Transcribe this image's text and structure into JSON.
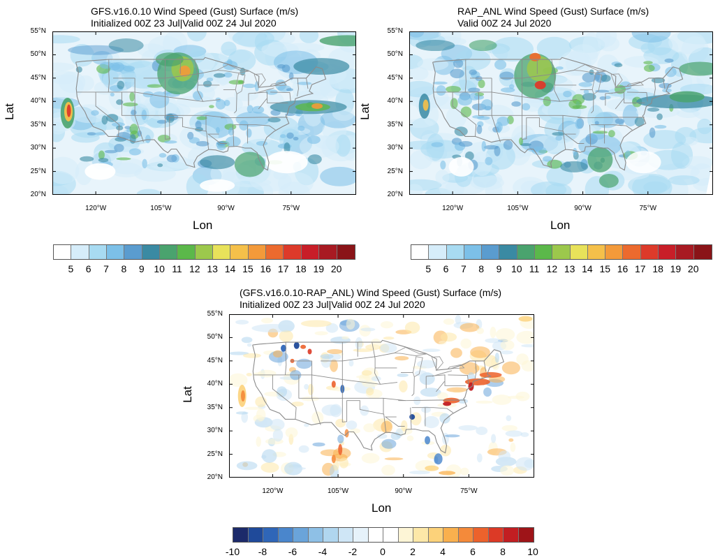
{
  "lat_ticks": [
    "55°N",
    "50°N",
    "45°N",
    "40°N",
    "35°N",
    "30°N",
    "25°N",
    "20°N"
  ],
  "lon_ticks": [
    "120°W",
    "105°W",
    "90°W",
    "75°W"
  ],
  "xlabel": "Lon",
  "ylabel": "Lat",
  "panels": [
    {
      "id": "gfs",
      "title_line1": "GFS.v16.0.10 Wind Speed (Gust) Surface (m/s)",
      "title_line2": "Initialized 00Z 23 Jul|Valid 00Z 24 Jul 2020"
    },
    {
      "id": "rap",
      "title_line1": "RAP_ANL Wind Speed (Gust) Surface (m/s)",
      "title_line2": "Valid 00Z 24 Jul 2020"
    },
    {
      "id": "diff",
      "title_line1": "(GFS.v16.0.10-RAP_ANL) Wind Speed (Gust) Surface (m/s)",
      "title_line2": "Initialized 00Z 23 Jul|Valid 00Z 24 Jul 2020"
    }
  ],
  "speed_colorbar": {
    "labels": [
      "5",
      "6",
      "7",
      "8",
      "9",
      "10",
      "11",
      "12",
      "13",
      "14",
      "15",
      "16",
      "17",
      "18",
      "19",
      "20"
    ],
    "colors": [
      "#ffffff",
      "#d6edfa",
      "#a8dbf2",
      "#7cc0e8",
      "#5a9ccf",
      "#3a8aa3",
      "#4aa36e",
      "#5bb84a",
      "#9cc84c",
      "#e8e25a",
      "#f5c04a",
      "#f39a3a",
      "#ec6a2e",
      "#dd3a2a",
      "#c81e28",
      "#a81a22",
      "#8a1418"
    ]
  },
  "diff_colorbar": {
    "labels": [
      "-10",
      "-8",
      "-6",
      "-4",
      "-2",
      "0",
      "2",
      "4",
      "6",
      "8",
      "10"
    ],
    "colors": [
      "#1c2a6a",
      "#1f4a9a",
      "#2f66b8",
      "#4a86cc",
      "#6aa4da",
      "#8ec0e6",
      "#b0d6ef",
      "#cfe6f6",
      "#e6f2fa",
      "#ffffff",
      "#ffffff",
      "#fdf5d6",
      "#fde8a8",
      "#fcd27a",
      "#f9b04e",
      "#f48a3a",
      "#ec622c",
      "#dc3a26",
      "#c21e22",
      "#9e1418"
    ]
  }
}
